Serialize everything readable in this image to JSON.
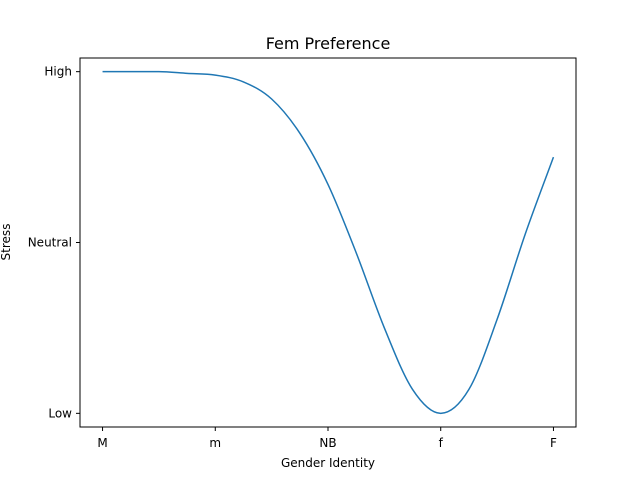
{
  "chart_data": {
    "type": "line",
    "title": "Fem Preference",
    "xlabel": "Gender Identity",
    "ylabel": "Stress",
    "x_categories": [
      "M",
      "m",
      "NB",
      "f",
      "F"
    ],
    "y_categories": [
      "Low",
      "Neutral",
      "High"
    ],
    "xlim": [
      -0.2,
      4.2
    ],
    "ylim": [
      -0.08,
      2.08
    ],
    "grid": false,
    "series": [
      {
        "color": "#1f77b4",
        "x": [
          0,
          0.25,
          0.5,
          0.75,
          1.0,
          1.25,
          1.5,
          1.75,
          2.0,
          2.25,
          2.5,
          2.75,
          3.0,
          3.25,
          3.5,
          3.75,
          4.0
        ],
        "y": [
          2.0,
          2.0,
          2.0,
          1.99,
          1.98,
          1.94,
          1.84,
          1.64,
          1.34,
          0.94,
          0.5,
          0.14,
          0.0,
          0.14,
          0.55,
          1.05,
          1.5
        ]
      }
    ]
  }
}
